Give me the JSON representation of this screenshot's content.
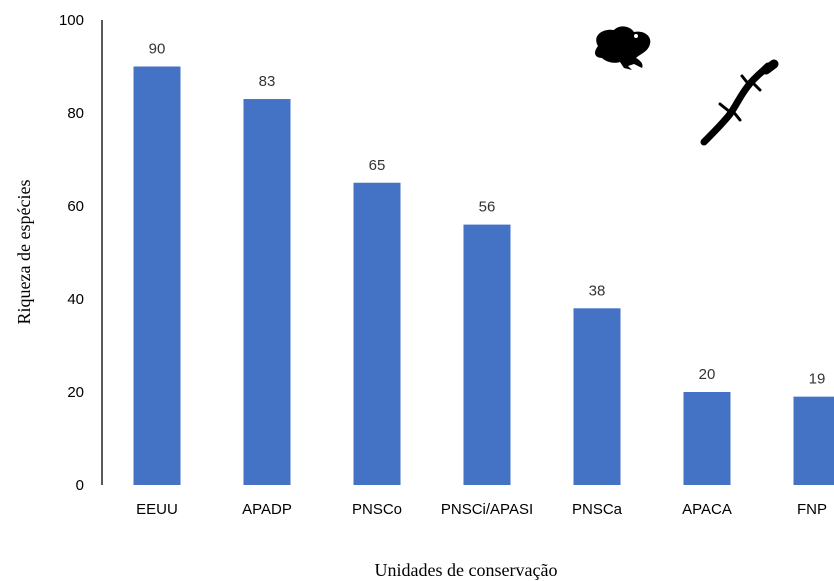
{
  "chart_data": {
    "type": "bar",
    "categories": [
      "EEUU",
      "APADP",
      "PNSCo",
      "PNSCi/APASI",
      "PNSCa",
      "APACA",
      "FNP"
    ],
    "values": [
      90,
      83,
      65,
      56,
      38,
      20,
      19
    ],
    "data_labels": [
      "90",
      "83",
      "65",
      "56",
      "38",
      "20",
      "19"
    ],
    "title": "",
    "xlabel": "Unidades de conservação",
    "ylabel": "Riqueza de espécies",
    "ylim": [
      0,
      100
    ],
    "yticks": [
      "0",
      "20",
      "40",
      "60",
      "80",
      "100"
    ],
    "ytick_values": [
      0,
      20,
      40,
      60,
      80,
      100
    ],
    "grid": false,
    "legend": "none",
    "bar_color": "#4472C4",
    "icons": [
      "frog-silhouette-icon",
      "lizard-silhouette-icon"
    ]
  }
}
